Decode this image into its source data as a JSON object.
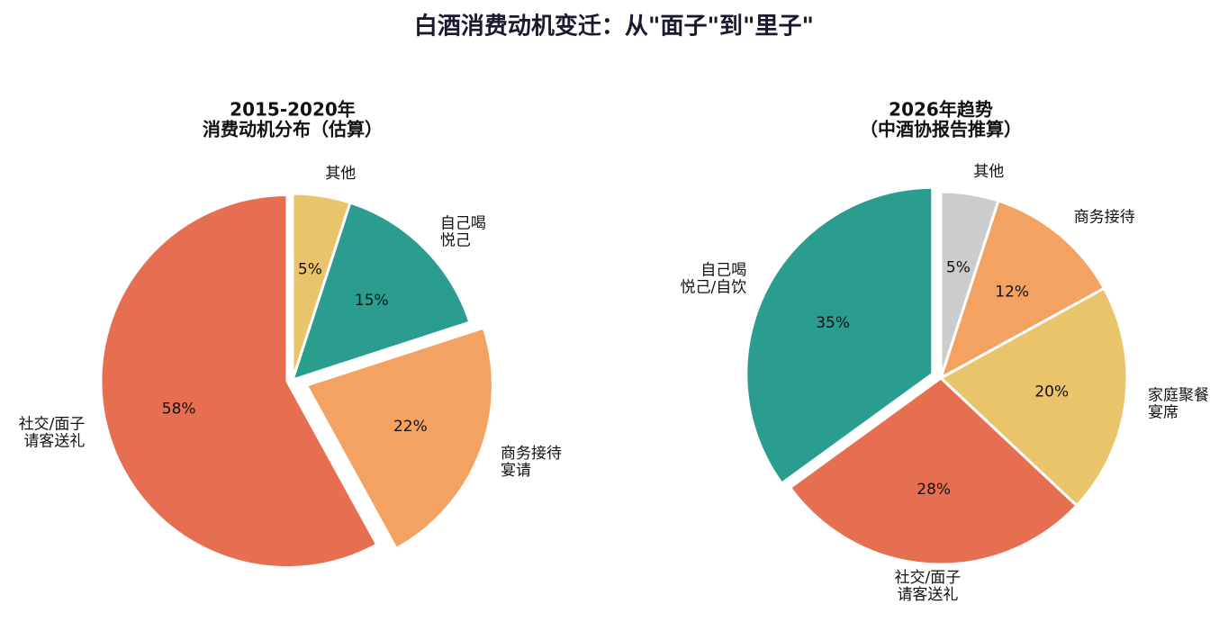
{
  "title": "白酒消费动机变迁：从\"面子\"到\"里子\"",
  "chart_data": [
    {
      "type": "pie",
      "title": [
        "2015-2020年",
        "消费动机分布（估算）"
      ],
      "categories": [
        [
          "其他"
        ],
        [
          "自己喝",
          "悦己"
        ],
        [
          "商务接待",
          "宴请"
        ],
        [
          "社交/面子",
          "请客送礼"
        ]
      ],
      "values": [
        5,
        15,
        22,
        58
      ],
      "value_labels": [
        "5%",
        "15%",
        "22%",
        "58%"
      ],
      "colors": [
        "#e9c46a",
        "#2a9d8f",
        "#f4a261",
        "#e76f51"
      ],
      "explode": [
        0,
        0,
        0.08,
        0.03
      ]
    },
    {
      "type": "pie",
      "title": [
        "2026年趋势",
        "（中酒协报告推算）"
      ],
      "categories": [
        [
          "其他"
        ],
        [
          "商务接待"
        ],
        [
          "家庭聚餐",
          "宴席"
        ],
        [
          "社交/面子",
          "请客送礼"
        ],
        [
          "自己喝",
          "悦己/自饮"
        ]
      ],
      "values": [
        5,
        12,
        20,
        28,
        35
      ],
      "value_labels": [
        "5%",
        "12%",
        "20%",
        "28%",
        "35%"
      ],
      "colors": [
        "#cccccc",
        "#f4a261",
        "#e9c46a",
        "#e76f51",
        "#2a9d8f"
      ],
      "explode": [
        0,
        0,
        0,
        0,
        0.05
      ]
    }
  ]
}
